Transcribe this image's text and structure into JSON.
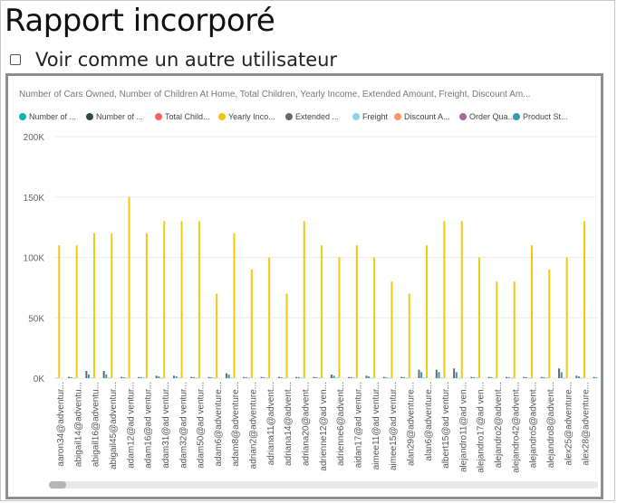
{
  "header": {
    "title": "Rapport incorporé",
    "view_as_label": "Voir comme un autre utilisateur",
    "view_as_checked": false
  },
  "chart_data": {
    "type": "bar",
    "title": "Number of Cars Owned, Number of Children At Home, Total Children, Yearly Income, Extended Amount, Freight, Discount Am...",
    "xlabel": "",
    "ylabel": "",
    "ylim": [
      0,
      200000
    ],
    "y_ticks": [
      0,
      50000,
      100000,
      150000,
      200000
    ],
    "y_tick_labels": [
      "0K",
      "50K",
      "100K",
      "150K",
      "200K"
    ],
    "grid": true,
    "legend_position": "top",
    "legend_labels": [
      "Number of ...",
      "Number of ...",
      "Total Child...",
      "Yearly Inco...",
      "Extended ...",
      "Freight",
      "Discount A...",
      "Order Qua...",
      "Product St..."
    ],
    "colors": {
      "number_of_cars": "#01b8aa",
      "number_of_children": "#374649",
      "total_children": "#fd625e",
      "yearly_income": "#f2c80f",
      "extended_amount": "#5f6b6d",
      "freight": "#8ad4eb",
      "discount": "#fe9666",
      "order_qty": "#a66999",
      "product_std": "#3599b8"
    },
    "categories": [
      "aaron34@adventur...",
      "abigail14@adventu...",
      "abigail16@adventu...",
      "abigail45@adventur...",
      "adam12@ad ventur...",
      "adam16@ad ventur...",
      "adam31@ad ventur...",
      "adam32@ad ventur...",
      "adam50@ad ventur...",
      "adam6@adventure...",
      "adam8@adventure...",
      "adrian2@adventure...",
      "adriana11@advent...",
      "adriana14@advent...",
      "adriana20@advent...",
      "adrienne12@ad ven...",
      "adrienne6@advent...",
      "aidan17@ad ventur...",
      "aimee11@ad ventur...",
      "aimee15@ad ventur...",
      "alan29@adventure...",
      "alan6@adventure...",
      "albert15@ad ventur...",
      "alejandro11@ad ven...",
      "alejandro17@ad ven...",
      "alejandro2@advent...",
      "alejandro42@advent...",
      "alejandro5@advent...",
      "alejandro8@advent...",
      "alex25@adventure...",
      "alex28@adventure..."
    ],
    "series": [
      {
        "name": "Yearly Inco...",
        "values": [
          110000,
          110000,
          120000,
          120000,
          150000,
          120000,
          130000,
          130000,
          130000,
          70000,
          120000,
          90000,
          100000,
          70000,
          130000,
          110000,
          100000,
          110000,
          100000,
          80000,
          70000,
          110000,
          130000,
          130000,
          100000,
          80000,
          80000,
          110000,
          90000,
          100000,
          130000
        ]
      },
      {
        "name": "Extended ...",
        "values": [
          1000,
          6000,
          6000,
          1000,
          1000,
          2000,
          2000,
          1000,
          1000,
          4000,
          1000,
          1000,
          1000,
          1000,
          1000,
          3000,
          1000,
          2000,
          1000,
          1000,
          7000,
          7000,
          8000,
          1000,
          1000,
          1000,
          1000,
          1000,
          8000,
          2000,
          1000
        ]
      },
      {
        "name": "Product St...",
        "values": [
          800,
          3000,
          3000,
          800,
          800,
          1500,
          1500,
          800,
          800,
          3000,
          800,
          800,
          800,
          800,
          800,
          2000,
          800,
          1500,
          800,
          800,
          5000,
          5000,
          5000,
          800,
          800,
          800,
          800,
          800,
          5000,
          1500,
          800
        ]
      },
      {
        "name": "Freight",
        "values": [
          400,
          400,
          400,
          400,
          400,
          400,
          400,
          400,
          400,
          400,
          400,
          400,
          400,
          400,
          400,
          400,
          400,
          400,
          400,
          400,
          400,
          400,
          400,
          400,
          400,
          400,
          400,
          400,
          400,
          400,
          400
        ]
      }
    ]
  }
}
